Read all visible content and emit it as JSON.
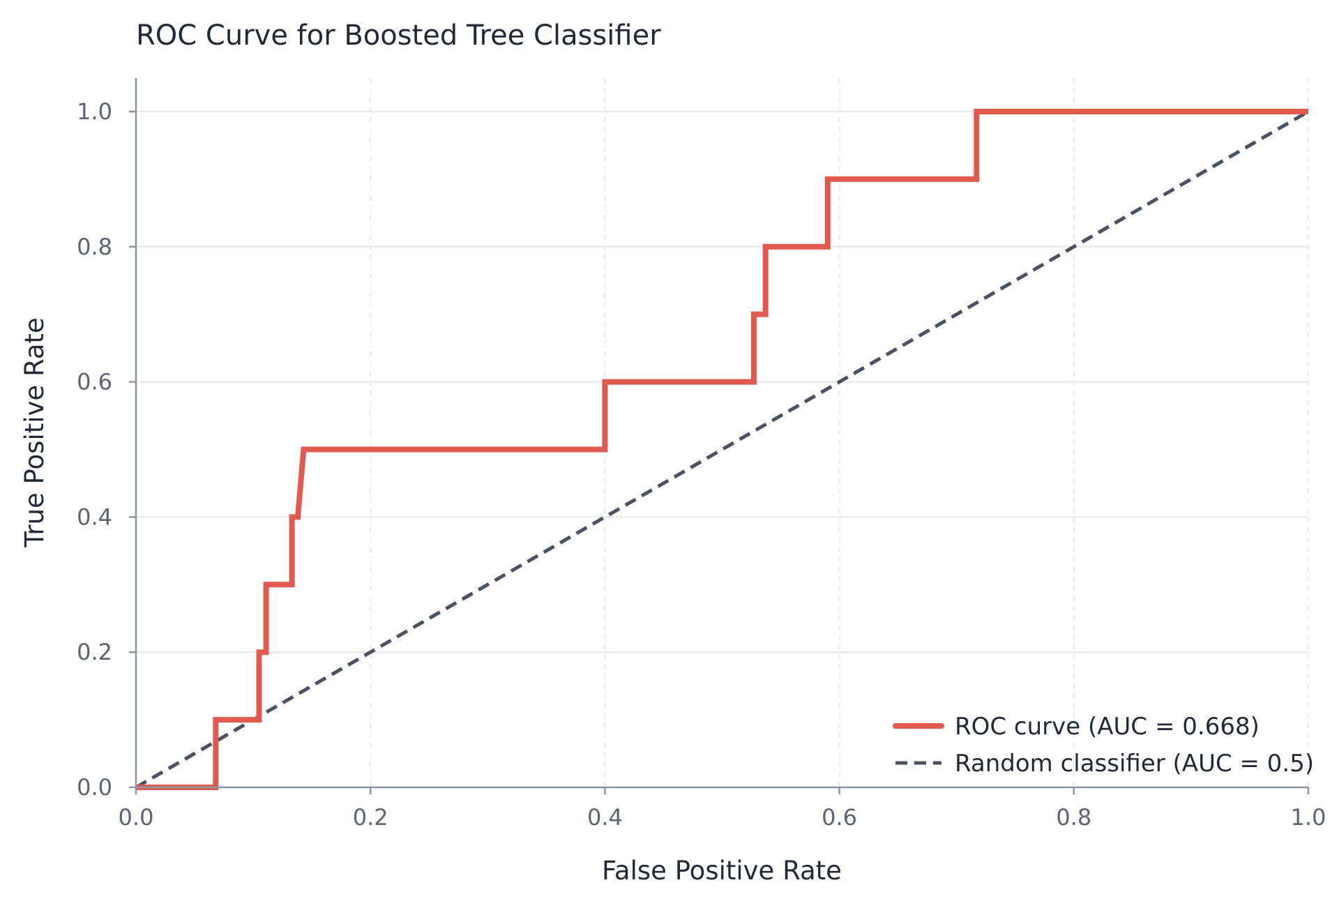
{
  "chart_data": {
    "type": "line",
    "title": "ROC Curve for Boosted Tree Classifier",
    "xlabel": "False Positive Rate",
    "ylabel": "True Positive Rate",
    "xlim": [
      0.0,
      1.0
    ],
    "ylim": [
      0.0,
      1.0
    ],
    "x_ticks": [
      "0.0",
      "0.2",
      "0.4",
      "0.6",
      "0.8",
      "1.0"
    ],
    "y_ticks": [
      "0.0",
      "0.2",
      "0.4",
      "0.6",
      "0.8",
      "1.0"
    ],
    "grid": true,
    "legend_position": "bottom-right",
    "series": [
      {
        "name": "ROC curve (AUC = 0.668)",
        "color": "#e05a4f",
        "style": "solid",
        "step": "post",
        "x": [
          0.0,
          0.068,
          0.068,
          0.105,
          0.105,
          0.111,
          0.111,
          0.133,
          0.133,
          0.138,
          0.143,
          0.4,
          0.4,
          0.527,
          0.527,
          0.537,
          0.537,
          0.59,
          0.59,
          0.717,
          0.717,
          1.0
        ],
        "y": [
          0.0,
          0.0,
          0.1,
          0.1,
          0.2,
          0.2,
          0.3,
          0.3,
          0.4,
          0.4,
          0.5,
          0.5,
          0.6,
          0.6,
          0.7,
          0.7,
          0.8,
          0.8,
          0.9,
          0.9,
          1.0,
          1.0
        ]
      },
      {
        "name": "Random classifier (AUC = 0.5)",
        "color": "#475263",
        "style": "dashed",
        "x": [
          0.0,
          1.0
        ],
        "y": [
          0.0,
          1.0
        ]
      }
    ]
  }
}
